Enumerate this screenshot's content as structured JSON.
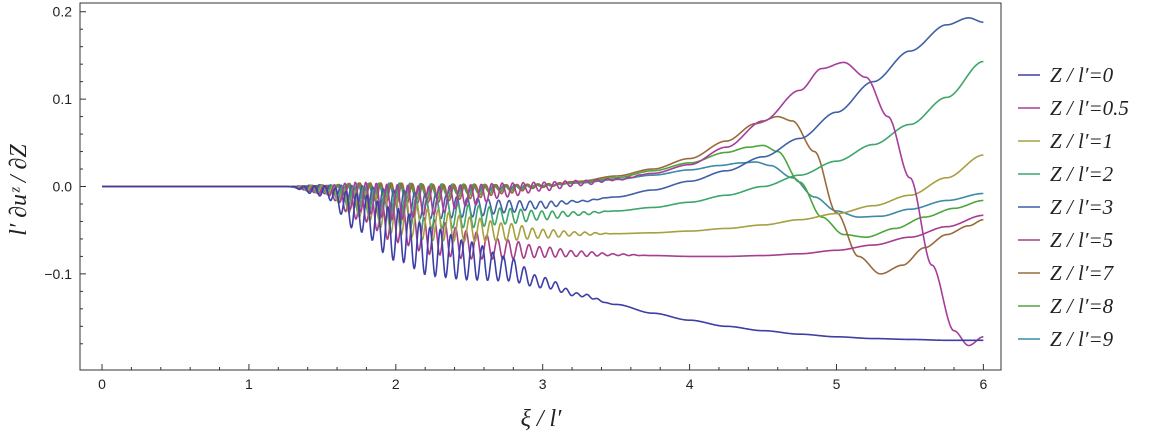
{
  "chart_data": {
    "type": "line",
    "title": "",
    "xlabel": "ξ / l′",
    "ylabel": "l′ ∂uᶻ / ∂Z",
    "xlim": [
      -0.15,
      6.12
    ],
    "ylim": [
      -0.21,
      0.21
    ],
    "x_ticks": [
      "0",
      "1",
      "2",
      "3",
      "4",
      "5",
      "6"
    ],
    "y_ticks": [
      "−0.1",
      "0.0",
      "0.1",
      "0.2"
    ],
    "grid": false,
    "legend_position": "right",
    "series": [
      {
        "name": "Z / l′=0",
        "color": "#3d3fa6",
        "x": [
          0,
          1.25,
          1.5,
          1.75,
          2.0,
          2.25,
          2.5,
          2.75,
          3.0,
          3.25,
          3.5,
          3.75,
          4.0,
          4.25,
          4.5,
          4.75,
          5.0,
          5.25,
          5.5,
          5.75,
          6.0
        ],
        "y": [
          0,
          0,
          -0.005,
          -0.03,
          -0.055,
          -0.075,
          -0.085,
          -0.094,
          -0.11,
          -0.124,
          -0.135,
          -0.145,
          -0.153,
          -0.16,
          -0.165,
          -0.169,
          -0.172,
          -0.174,
          -0.175,
          -0.176,
          -0.176
        ],
        "osc": [
          0,
          0,
          0.006,
          0.022,
          0.03,
          0.028,
          0.022,
          0.014,
          0.006,
          0.002,
          0,
          0,
          0,
          0,
          0,
          0,
          0,
          0,
          0,
          0,
          0
        ]
      },
      {
        "name": "Z / l′=0.5",
        "color": "#a63d9a",
        "x": [
          0,
          1.25,
          1.5,
          1.75,
          2.0,
          2.25,
          2.5,
          2.75,
          3.0,
          3.25,
          3.5,
          3.75,
          4.0,
          4.25,
          4.5,
          4.75,
          4.9,
          5.05,
          5.2,
          5.35,
          5.5,
          5.65,
          5.8,
          5.9,
          6.0
        ],
        "y": [
          0,
          0,
          -0.004,
          -0.012,
          -0.018,
          -0.016,
          -0.01,
          -0.004,
          0,
          0.004,
          0.008,
          0.015,
          0.025,
          0.045,
          0.075,
          0.11,
          0.135,
          0.142,
          0.125,
          0.08,
          0.01,
          -0.09,
          -0.165,
          -0.182,
          -0.172
        ],
        "osc": [
          0,
          0,
          0.005,
          0.017,
          0.02,
          0.016,
          0.012,
          0.008,
          0.005,
          0.003,
          0.001,
          0,
          0,
          0,
          0,
          0,
          0,
          0,
          0,
          0,
          0,
          0,
          0,
          0,
          0
        ]
      },
      {
        "name": "Z / l′=1",
        "color": "#a6a040",
        "x": [
          0,
          1.25,
          1.5,
          1.75,
          2.0,
          2.25,
          2.5,
          2.75,
          3.0,
          3.25,
          3.5,
          3.75,
          4.0,
          4.25,
          4.5,
          4.75,
          5.0,
          5.25,
          5.5,
          5.75,
          6.0
        ],
        "y": [
          0,
          0,
          -0.003,
          -0.02,
          -0.035,
          -0.044,
          -0.049,
          -0.052,
          -0.054,
          -0.054,
          -0.054,
          -0.053,
          -0.051,
          -0.048,
          -0.044,
          -0.038,
          -0.031,
          -0.022,
          -0.01,
          0.01,
          0.036
        ],
        "osc": [
          0,
          0,
          0.005,
          0.015,
          0.02,
          0.018,
          0.014,
          0.01,
          0.005,
          0.002,
          0,
          0,
          0,
          0,
          0,
          0,
          0,
          0,
          0,
          0,
          0
        ]
      },
      {
        "name": "Z / l′=2",
        "color": "#3da66a",
        "x": [
          0,
          1.25,
          1.5,
          1.75,
          2.0,
          2.25,
          2.5,
          2.75,
          3.0,
          3.25,
          3.5,
          3.75,
          4.0,
          4.25,
          4.5,
          4.75,
          5.0,
          5.25,
          5.5,
          5.75,
          6.0
        ],
        "y": [
          0,
          0,
          -0.003,
          -0.016,
          -0.027,
          -0.032,
          -0.034,
          -0.034,
          -0.033,
          -0.031,
          -0.028,
          -0.024,
          -0.018,
          -0.01,
          0,
          0.013,
          0.029,
          0.048,
          0.071,
          0.102,
          0.143
        ],
        "osc": [
          0,
          0,
          0.005,
          0.015,
          0.018,
          0.016,
          0.013,
          0.009,
          0.005,
          0.002,
          0,
          0,
          0,
          0,
          0,
          0,
          0,
          0,
          0,
          0,
          0
        ]
      },
      {
        "name": "Z / l′=3",
        "color": "#3f5fa6",
        "x": [
          0,
          1.25,
          1.5,
          1.75,
          2.0,
          2.25,
          2.5,
          2.75,
          3.0,
          3.25,
          3.5,
          3.75,
          4.0,
          4.25,
          4.5,
          4.75,
          5.0,
          5.25,
          5.5,
          5.75,
          5.9,
          6.0
        ],
        "y": [
          0,
          0,
          -0.002,
          -0.012,
          -0.02,
          -0.023,
          -0.024,
          -0.023,
          -0.021,
          -0.017,
          -0.012,
          -0.004,
          0.006,
          0.018,
          0.034,
          0.055,
          0.085,
          0.12,
          0.155,
          0.185,
          0.193,
          0.188
        ],
        "osc": [
          0,
          0,
          0.004,
          0.013,
          0.016,
          0.014,
          0.011,
          0.007,
          0.004,
          0.001,
          0,
          0,
          0,
          0,
          0,
          0,
          0,
          0,
          0,
          0,
          0,
          0
        ]
      },
      {
        "name": "Z / l′=5",
        "color": "#a63d8e",
        "x": [
          0,
          1.25,
          1.5,
          1.75,
          2.0,
          2.25,
          2.5,
          2.75,
          3.0,
          3.25,
          3.5,
          3.75,
          4.0,
          4.25,
          4.5,
          4.75,
          5.0,
          5.25,
          5.5,
          5.75,
          6.0
        ],
        "y": [
          0,
          0,
          -0.003,
          -0.022,
          -0.042,
          -0.058,
          -0.067,
          -0.072,
          -0.075,
          -0.077,
          -0.078,
          -0.079,
          -0.08,
          -0.08,
          -0.079,
          -0.077,
          -0.073,
          -0.067,
          -0.058,
          -0.046,
          -0.033
        ],
        "osc": [
          0,
          0,
          0.005,
          0.016,
          0.022,
          0.02,
          0.016,
          0.011,
          0.006,
          0.003,
          0.001,
          0,
          0,
          0,
          0,
          0,
          0,
          0,
          0,
          0,
          0
        ]
      },
      {
        "name": "Z / l′=7",
        "color": "#9a6a3d",
        "x": [
          0,
          1.25,
          1.5,
          1.75,
          2.0,
          2.25,
          2.5,
          2.75,
          3.0,
          3.25,
          3.5,
          3.75,
          4.0,
          4.25,
          4.45,
          4.6,
          4.7,
          4.85,
          5.0,
          5.15,
          5.3,
          5.45,
          5.6,
          5.75,
          5.9,
          6.0
        ],
        "y": [
          0,
          0,
          -0.001,
          -0.005,
          -0.008,
          -0.008,
          -0.006,
          -0.003,
          0.001,
          0.006,
          0.012,
          0.02,
          0.032,
          0.052,
          0.072,
          0.08,
          0.075,
          0.04,
          -0.03,
          -0.08,
          -0.1,
          -0.09,
          -0.07,
          -0.055,
          -0.045,
          -0.038
        ],
        "osc": [
          0,
          0,
          0.002,
          0.009,
          0.012,
          0.01,
          0.008,
          0.005,
          0.002,
          0,
          0,
          0,
          0,
          0,
          0,
          0,
          0,
          0,
          0,
          0,
          0,
          0,
          0,
          0,
          0,
          0
        ]
      },
      {
        "name": "Z / l′=8",
        "color": "#4da63d",
        "x": [
          0,
          1.25,
          1.5,
          1.75,
          2.0,
          2.25,
          2.5,
          2.75,
          3.0,
          3.25,
          3.5,
          3.75,
          4.0,
          4.25,
          4.4,
          4.5,
          4.6,
          4.75,
          4.9,
          5.05,
          5.2,
          5.4,
          5.6,
          5.8,
          6.0
        ],
        "y": [
          0,
          0,
          -0.001,
          -0.004,
          -0.006,
          -0.006,
          -0.004,
          -0.002,
          0.001,
          0.005,
          0.01,
          0.018,
          0.027,
          0.039,
          0.045,
          0.047,
          0.04,
          0.005,
          -0.035,
          -0.055,
          -0.058,
          -0.048,
          -0.035,
          -0.025,
          -0.016
        ],
        "osc": [
          0,
          0,
          0.002,
          0.008,
          0.01,
          0.009,
          0.007,
          0.004,
          0.002,
          0,
          0,
          0,
          0,
          0,
          0,
          0,
          0,
          0,
          0,
          0,
          0,
          0,
          0,
          0,
          0
        ]
      },
      {
        "name": "Z / l′=9",
        "color": "#3d8aa6",
        "x": [
          0,
          1.25,
          1.5,
          1.75,
          2.0,
          2.25,
          2.5,
          2.75,
          3.0,
          3.25,
          3.5,
          3.75,
          4.0,
          4.2,
          4.35,
          4.45,
          4.55,
          4.7,
          4.85,
          5.0,
          5.15,
          5.3,
          5.5,
          5.75,
          6.0
        ],
        "y": [
          0,
          0,
          -0.001,
          -0.003,
          -0.004,
          -0.004,
          -0.003,
          -0.001,
          0.001,
          0.004,
          0.008,
          0.013,
          0.019,
          0.024,
          0.027,
          0.028,
          0.024,
          0.01,
          -0.012,
          -0.028,
          -0.035,
          -0.034,
          -0.026,
          -0.016,
          -0.008
        ],
        "osc": [
          0,
          0,
          0.002,
          0.006,
          0.008,
          0.007,
          0.005,
          0.003,
          0.001,
          0,
          0,
          0,
          0,
          0,
          0,
          0,
          0,
          0,
          0,
          0,
          0,
          0,
          0,
          0,
          0
        ]
      }
    ]
  }
}
